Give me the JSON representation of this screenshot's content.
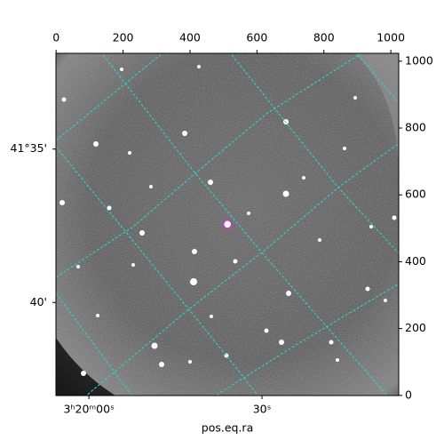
{
  "chart_data": {
    "type": "image",
    "xlabel": "pos.eq.ra",
    "xlim": [
      -0.5,
      1023.5
    ],
    "ylim": [
      -0.5,
      1023.5
    ],
    "xticks": [
      0,
      200,
      400,
      600,
      800,
      1000
    ],
    "yticks": [
      0,
      200,
      400,
      600,
      800,
      1000
    ],
    "ra_ticks": [
      {
        "value": 98,
        "label": "3ʰ20ᵐ00ˢ"
      },
      {
        "value": 615,
        "label": "30ˢ"
      }
    ],
    "dec_ticks": [
      {
        "value": 737,
        "label": "41°35'"
      },
      {
        "value": 278,
        "label": "40'"
      }
    ],
    "marker": {
      "x": 512,
      "y": 512,
      "color": "#e020e0"
    }
  }
}
